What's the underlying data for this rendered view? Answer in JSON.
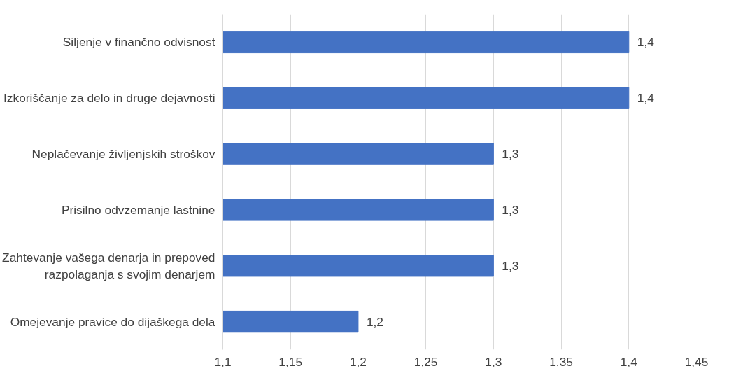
{
  "chart_data": {
    "type": "bar",
    "orientation": "horizontal",
    "categories": [
      "Siljenje v finančno odvisnost",
      "Izkoriščanje za delo in druge dejavnosti",
      "Neplačevanje življenjskih stroškov",
      "Prisilno odvzemanje lastnine",
      "Zahtevanje vašega denarja in prepoved razpolaganja s svojim denarjem",
      "Omejevanje pravice do dijaškega dela"
    ],
    "values": [
      1.4,
      1.4,
      1.3,
      1.3,
      1.3,
      1.2
    ],
    "value_labels": [
      "1,4",
      "1,4",
      "1,3",
      "1,3",
      "1,3",
      "1,2"
    ],
    "color": "#4472c4",
    "xlim": [
      1.1,
      1.45
    ],
    "xticks": [
      {
        "value": 1.1,
        "label": "1,1"
      },
      {
        "value": 1.15,
        "label": "1,15"
      },
      {
        "value": 1.2,
        "label": "1,2"
      },
      {
        "value": 1.25,
        "label": "1,25"
      },
      {
        "value": 1.3,
        "label": "1,3"
      },
      {
        "value": 1.35,
        "label": "1,35"
      },
      {
        "value": 1.4,
        "label": "1,4"
      },
      {
        "value": 1.45,
        "label": "1,45"
      }
    ],
    "grid": "x"
  }
}
